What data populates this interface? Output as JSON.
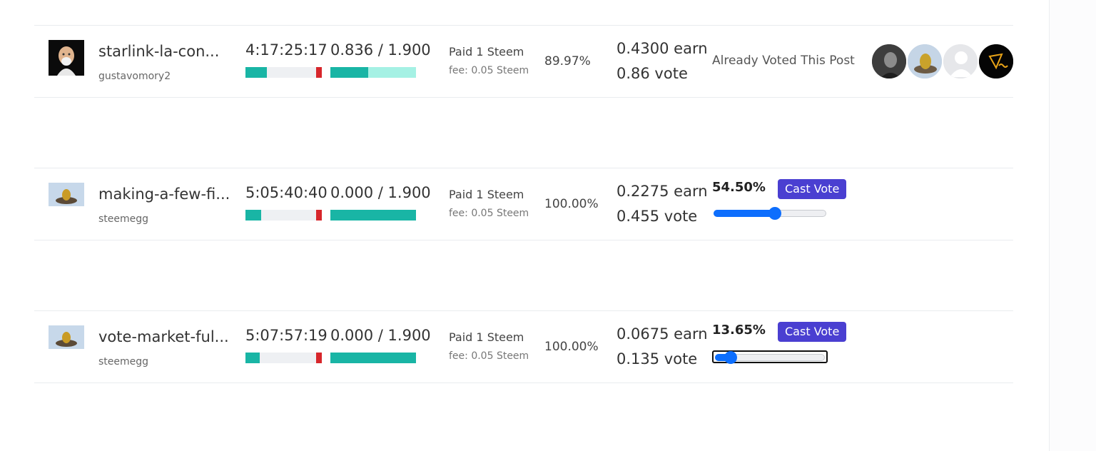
{
  "posts": [
    {
      "title": "starlink-la-con...",
      "author": "gustavomory2",
      "time_left": "4:17:25:17",
      "ratio": "0.836 / 1.900",
      "time_progress": 0.3,
      "ratio_progress": 0.44,
      "paid": "Paid 1 Steem",
      "fee": "fee: 0.05 Steem",
      "percent": "89.97%",
      "earn": "0.4300 earn",
      "vote": "0.86 vote",
      "status": "Already Voted This Post",
      "voters": [
        "voter-avatar-1",
        "voter-avatar-2",
        "voter-avatar-3",
        "voter-avatar-4"
      ]
    },
    {
      "title": "making-a-few-fi...",
      "author": "steemegg",
      "time_left": "5:05:40:40",
      "ratio": "0.000 / 1.900",
      "time_progress": 0.22,
      "ratio_progress": 1.0,
      "paid": "Paid 1 Steem",
      "fee": "fee: 0.05 Steem",
      "percent": "100.00%",
      "earn": "0.2275 earn",
      "vote": "0.455 vote",
      "weight_label": "54.50%",
      "weight": 54.5,
      "cast_label": "Cast Vote"
    },
    {
      "title": "vote-market-ful...",
      "author": "steemegg",
      "time_left": "5:07:57:19",
      "ratio": "0.000 / 1.900",
      "time_progress": 0.2,
      "ratio_progress": 1.0,
      "paid": "Paid 1 Steem",
      "fee": "fee: 0.05 Steem",
      "percent": "100.00%",
      "earn": "0.0675 earn",
      "vote": "0.135 vote",
      "weight_label": "13.65%",
      "weight": 13.65,
      "cast_label": "Cast Vote"
    }
  ],
  "colors": {
    "teal": "#19b5a5",
    "teal_light": "#a5f1e4",
    "red": "#d7262b",
    "cast_button": "#4a3fd1",
    "slider": "#0d6efd"
  }
}
